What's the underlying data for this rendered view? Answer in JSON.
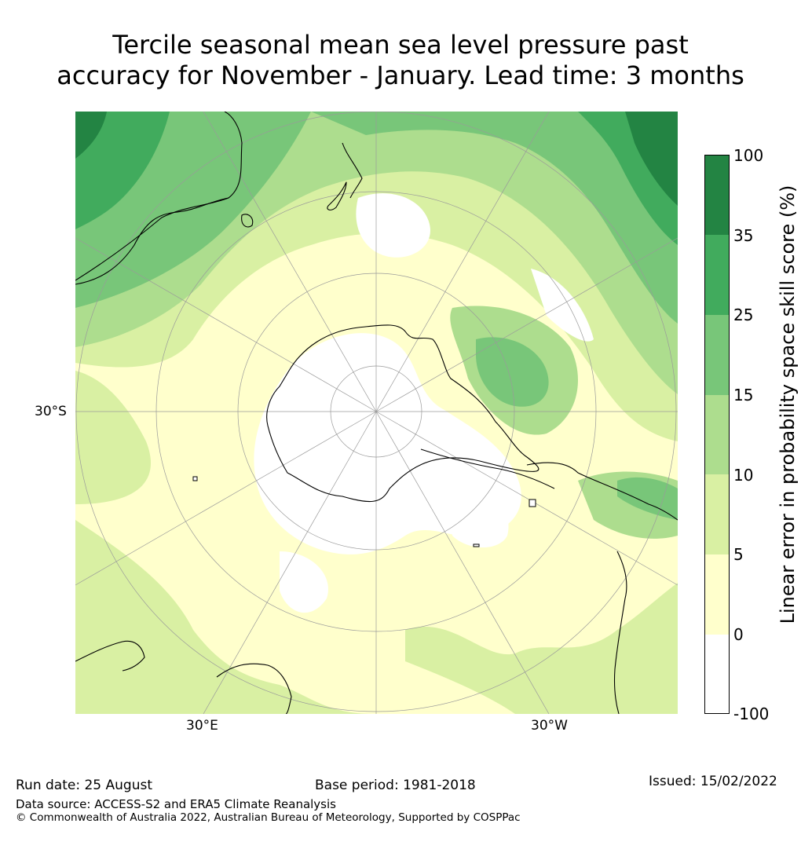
{
  "title": {
    "line1": "Tercile seasonal mean sea level pressure past",
    "line2": "accuracy for November - January. Lead time: 3 months"
  },
  "map": {
    "projection": "south polar stereographic",
    "grid_labels": {
      "lat": "30°S",
      "lon_east": "30°E",
      "lon_west": "30°W"
    },
    "colors": {
      "land_outline": "#000000",
      "graticule": "#9a9a9a"
    }
  },
  "colorbar": {
    "label": "Linear error in probability space skill score (%)",
    "ticks": [
      "100",
      "35",
      "25",
      "15",
      "10",
      "5",
      "0",
      "-100"
    ],
    "bins": [
      {
        "range": "-100 to 0",
        "color": "#ffffff"
      },
      {
        "range": "0 to 5",
        "color": "#ffffcc"
      },
      {
        "range": "5 to 10",
        "color": "#d9f0a3"
      },
      {
        "range": "10 to 15",
        "color": "#addd8e"
      },
      {
        "range": "15 to 25",
        "color": "#78c679"
      },
      {
        "range": "25 to 35",
        "color": "#41ab5d"
      },
      {
        "range": "35 to 100",
        "color": "#238443"
      }
    ]
  },
  "footer": {
    "run_date": "Run date: 25 August",
    "base_period": "Base period: 1981-2018",
    "issued": "Issued: 15/02/2022",
    "data_source": "Data source: ACCESS-S2 and ERA5 Climate Reanalysis",
    "copyright": "© Commonwealth of Australia 2022, Australian Bureau of Meteorology, Supported by COSPPac"
  }
}
